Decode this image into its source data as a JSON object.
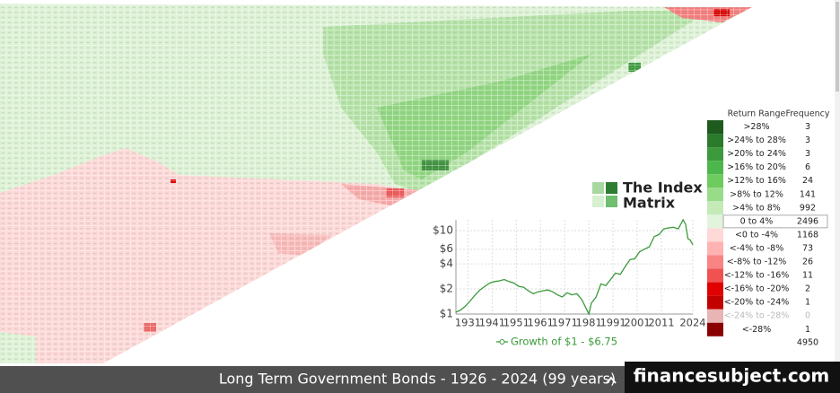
{
  "chart_data": {
    "type": "line",
    "x": [
      1926,
      1928,
      1930,
      1932,
      1934,
      1936,
      1938,
      1940,
      1942,
      1944,
      1946,
      1948,
      1950,
      1952,
      1954,
      1956,
      1958,
      1960,
      1962,
      1964,
      1966,
      1968,
      1970,
      1972,
      1974,
      1976,
      1978,
      1980,
      1981,
      1982,
      1984,
      1986,
      1988,
      1990,
      1992,
      1994,
      1996,
      1998,
      2000,
      2002,
      2004,
      2006,
      2008,
      2010,
      2012,
      2014,
      2016,
      2018,
      2020,
      2021,
      2022,
      2023,
      2024
    ],
    "series": [
      {
        "name": "Growth of $1 - $6.75",
        "color": "#3a9a3a",
        "values": [
          1.05,
          1.12,
          1.25,
          1.45,
          1.7,
          1.95,
          2.15,
          2.35,
          2.45,
          2.5,
          2.6,
          2.45,
          2.35,
          2.15,
          2.1,
          1.9,
          1.75,
          1.85,
          1.9,
          1.95,
          1.85,
          1.7,
          1.6,
          1.8,
          1.7,
          1.75,
          1.5,
          1.15,
          1.0,
          1.35,
          1.6,
          2.3,
          2.2,
          2.6,
          3.1,
          3.0,
          3.7,
          4.5,
          4.6,
          5.6,
          6.0,
          6.4,
          8.5,
          9.0,
          10.5,
          10.8,
          11.0,
          10.5,
          13.5,
          12.0,
          8.0,
          7.7,
          6.75
        ]
      }
    ],
    "xlim": [
      1926,
      2024
    ],
    "xticks": [
      1931,
      1941,
      1951,
      1961,
      1971,
      1981,
      1991,
      2001,
      2011,
      2024
    ],
    "ylim": [
      1,
      13.5
    ],
    "yticks": [
      {
        "value": 1,
        "label": "$1"
      },
      {
        "value": 2,
        "label": "$2"
      },
      {
        "value": 4,
        "label": "$4"
      },
      {
        "value": 6,
        "label": "$6"
      },
      {
        "value": 10,
        "label": "$10"
      }
    ],
    "log_scale": true,
    "grid": true
  },
  "return_table": {
    "headers": [
      "Return Range",
      "Frequency"
    ],
    "rows": [
      {
        "range": ">28%",
        "frequency": "3",
        "color": "#1f5a1f"
      },
      {
        "range": ">24% to 28%",
        "frequency": "3",
        "color": "#2c7a2c"
      },
      {
        "range": ">20% to 24%",
        "frequency": "3",
        "color": "#3c9a3c"
      },
      {
        "range": ">16% to 20%",
        "frequency": "6",
        "color": "#4db64d"
      },
      {
        "range": ">12% to 16%",
        "frequency": "24",
        "color": "#6ecb5e"
      },
      {
        "range": ">8% to 12%",
        "frequency": "141",
        "color": "#98dc88"
      },
      {
        "range": ">4% to 8%",
        "frequency": "992",
        "color": "#c4eab8"
      },
      {
        "range": "0 to 4%",
        "frequency": "2496",
        "color": "#e3f4dc"
      },
      {
        "range": "<0 to -4%",
        "frequency": "1168",
        "color": "#ffd8d8"
      },
      {
        "range": "<-4% to -8%",
        "frequency": "73",
        "color": "#ffb2b2"
      },
      {
        "range": "<-8% to -12%",
        "frequency": "26",
        "color": "#f88484"
      },
      {
        "range": "<-12% to -16%",
        "frequency": "11",
        "color": "#f05252"
      },
      {
        "range": "<-16% to -20%",
        "frequency": "2",
        "color": "#e00000"
      },
      {
        "range": "<-20% to -24%",
        "frequency": "1",
        "color": "#c20000"
      },
      {
        "range": "<-24% to -28%",
        "frequency": "0",
        "color": "#e8b4b4"
      },
      {
        "range": "<-28%",
        "frequency": "1",
        "color": "#8a0000"
      }
    ],
    "total": "4950"
  },
  "logo": {
    "line1": "The Index",
    "line2": "Matrix"
  },
  "footer": {
    "title": "Long Term Government Bonds - 1926 - 2024 (99 years)"
  },
  "watermark": {
    "text": "financesubject.com"
  }
}
